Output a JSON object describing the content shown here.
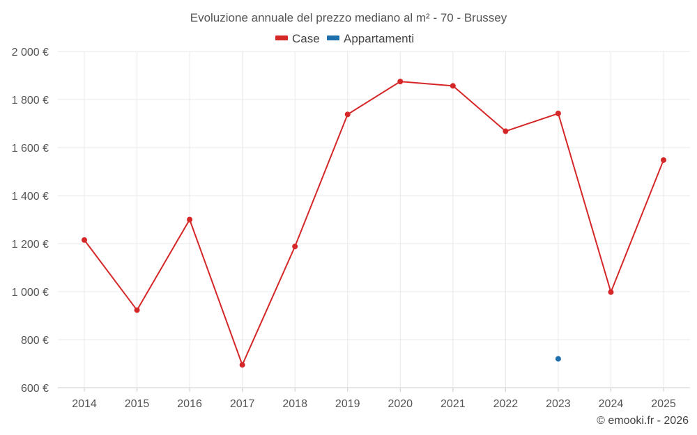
{
  "chart_data": {
    "type": "line",
    "title": "Evoluzione annuale del prezzo mediano al m² - 70 - Brussey",
    "categories": [
      "2014",
      "2015",
      "2016",
      "2017",
      "2018",
      "2019",
      "2020",
      "2021",
      "2022",
      "2023",
      "2024",
      "2025"
    ],
    "series": [
      {
        "name": "Case",
        "color": "#d62728",
        "values": [
          1215,
          923,
          1300,
          695,
          1188,
          1738,
          1875,
          1857,
          1668,
          1742,
          998,
          1548
        ]
      },
      {
        "name": "Appartamenti",
        "color": "#1f6fad",
        "values": [
          null,
          null,
          null,
          null,
          null,
          null,
          null,
          null,
          null,
          720,
          null,
          null
        ]
      }
    ],
    "ylim": [
      600,
      2000
    ],
    "yticks": [
      600,
      800,
      1000,
      1200,
      1400,
      1600,
      1800,
      2000
    ],
    "ytick_labels": [
      "600 €",
      "800 €",
      "1 000 €",
      "1 200 €",
      "1 400 €",
      "1 600 €",
      "1 800 €",
      "2 000 €"
    ],
    "grid": true,
    "legend_position": "top-center"
  },
  "credit": "© emooki.fr - 2026"
}
